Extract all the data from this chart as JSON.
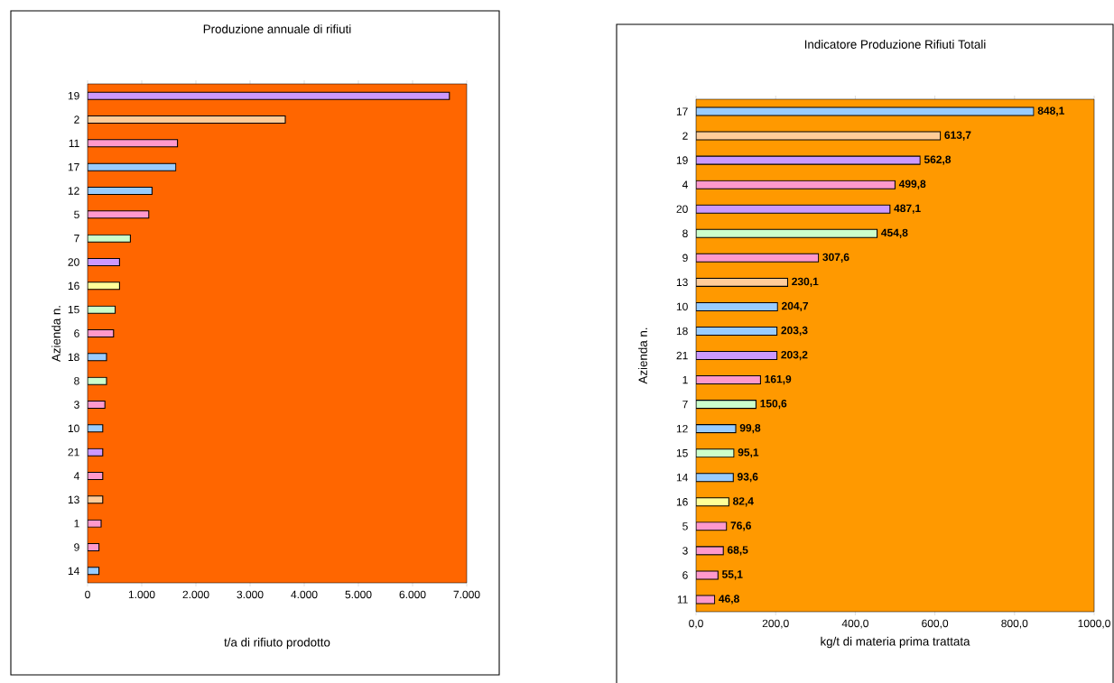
{
  "chart_data": [
    {
      "type": "bar",
      "orientation": "horizontal",
      "title": "Produzione annuale di rifiuti",
      "xlabel": "t/a di rifiuto prodotto",
      "ylabel": "Azienda n.",
      "categories": [
        "19",
        "2",
        "11",
        "17",
        "12",
        "5",
        "7",
        "20",
        "16",
        "15",
        "6",
        "18",
        "8",
        "3",
        "10",
        "21",
        "4",
        "13",
        "1",
        "9",
        "14"
      ],
      "values": [
        6680,
        3650,
        1660,
        1630,
        1190,
        1130,
        790,
        590,
        590,
        510,
        480,
        350,
        350,
        320,
        280,
        280,
        280,
        280,
        250,
        210,
        210
      ],
      "colors": [
        "#cc99ff",
        "#ffcc99",
        "#ff99cc",
        "#99ccff",
        "#99ccff",
        "#ff99cc",
        "#ccffcc",
        "#cc99ff",
        "#ffff99",
        "#ccffcc",
        "#ff99cc",
        "#99ccff",
        "#ccffcc",
        "#ff99cc",
        "#99ccff",
        "#cc99ff",
        "#ff99cc",
        "#ffcc99",
        "#ff99cc",
        "#ff99cc",
        "#99ccff"
      ],
      "xlim": [
        0,
        7000
      ],
      "xticks": [
        0,
        {
          "value": 1000,
          "label": "1.000"
        },
        {
          "value": 2000,
          "label": "2.000"
        },
        {
          "value": 3000,
          "label": "3.000"
        },
        {
          "value": 4000,
          "label": "4.000"
        },
        {
          "value": 5000,
          "label": "5.000"
        },
        {
          "value": 6000,
          "label": "6.000"
        },
        {
          "value": 7000,
          "label": "7.000"
        }
      ]
    },
    {
      "type": "bar",
      "orientation": "horizontal",
      "title": "Indicatore Produzione Rifiuti Totali",
      "xlabel": "kg/t di materia prima trattata",
      "ylabel": "Azienda n.",
      "categories": [
        "17",
        "2",
        "19",
        "4",
        "20",
        "8",
        "9",
        "13",
        "10",
        "18",
        "21",
        "1",
        "7",
        "12",
        "15",
        "14",
        "16",
        "5",
        "3",
        "6",
        "11"
      ],
      "values": [
        848.1,
        613.7,
        562.8,
        499.8,
        487.1,
        454.8,
        307.6,
        230.1,
        204.7,
        203.3,
        203.2,
        161.9,
        150.6,
        99.8,
        95.1,
        93.6,
        82.4,
        76.6,
        68.5,
        55.1,
        46.8
      ],
      "value_labels": [
        "848,1",
        "613,7",
        "562,8",
        "499,8",
        "487,1",
        "454,8",
        "307,6",
        "230,1",
        "204,7",
        "203,3",
        "203,2",
        "161,9",
        "150,6",
        "99,8",
        "95,1",
        "93,6",
        "82,4",
        "76,6",
        "68,5",
        "55,1",
        "46,8"
      ],
      "colors": [
        "#99ccff",
        "#ffcc99",
        "#cc99ff",
        "#ff99cc",
        "#cc99ff",
        "#ccffcc",
        "#ff99cc",
        "#ffcc99",
        "#99ccff",
        "#99ccff",
        "#cc99ff",
        "#ff99cc",
        "#ccffcc",
        "#99ccff",
        "#ccffcc",
        "#99ccff",
        "#ffff99",
        "#ff99cc",
        "#ff99cc",
        "#ff99cc",
        "#ff99cc"
      ],
      "xlim": [
        0,
        1000
      ],
      "xticks": [
        {
          "value": 0,
          "label": "0,0"
        },
        {
          "value": 200,
          "label": "200,0"
        },
        {
          "value": 400,
          "label": "400,0"
        },
        {
          "value": 600,
          "label": "600,0"
        },
        {
          "value": 800,
          "label": "800,0"
        },
        {
          "value": 1000,
          "label": "1000,0"
        }
      ]
    }
  ]
}
